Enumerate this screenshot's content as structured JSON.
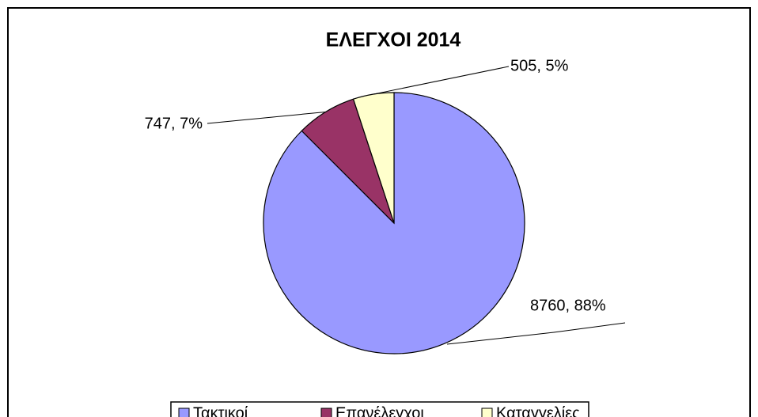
{
  "chart_data": {
    "type": "pie",
    "title": "ΕΛΕΓΧΟΙ 2014",
    "categories": [
      "Τακτικοί",
      "Επανέλεγχοι",
      "Καταγγελίες"
    ],
    "values": [
      8760,
      747,
      505
    ],
    "value_labels": [
      "8760, 88%",
      "747, 7%",
      "505, 5%"
    ],
    "colors": [
      "#9999ff",
      "#993366",
      "#ffffcc"
    ],
    "legend": "bottom"
  }
}
